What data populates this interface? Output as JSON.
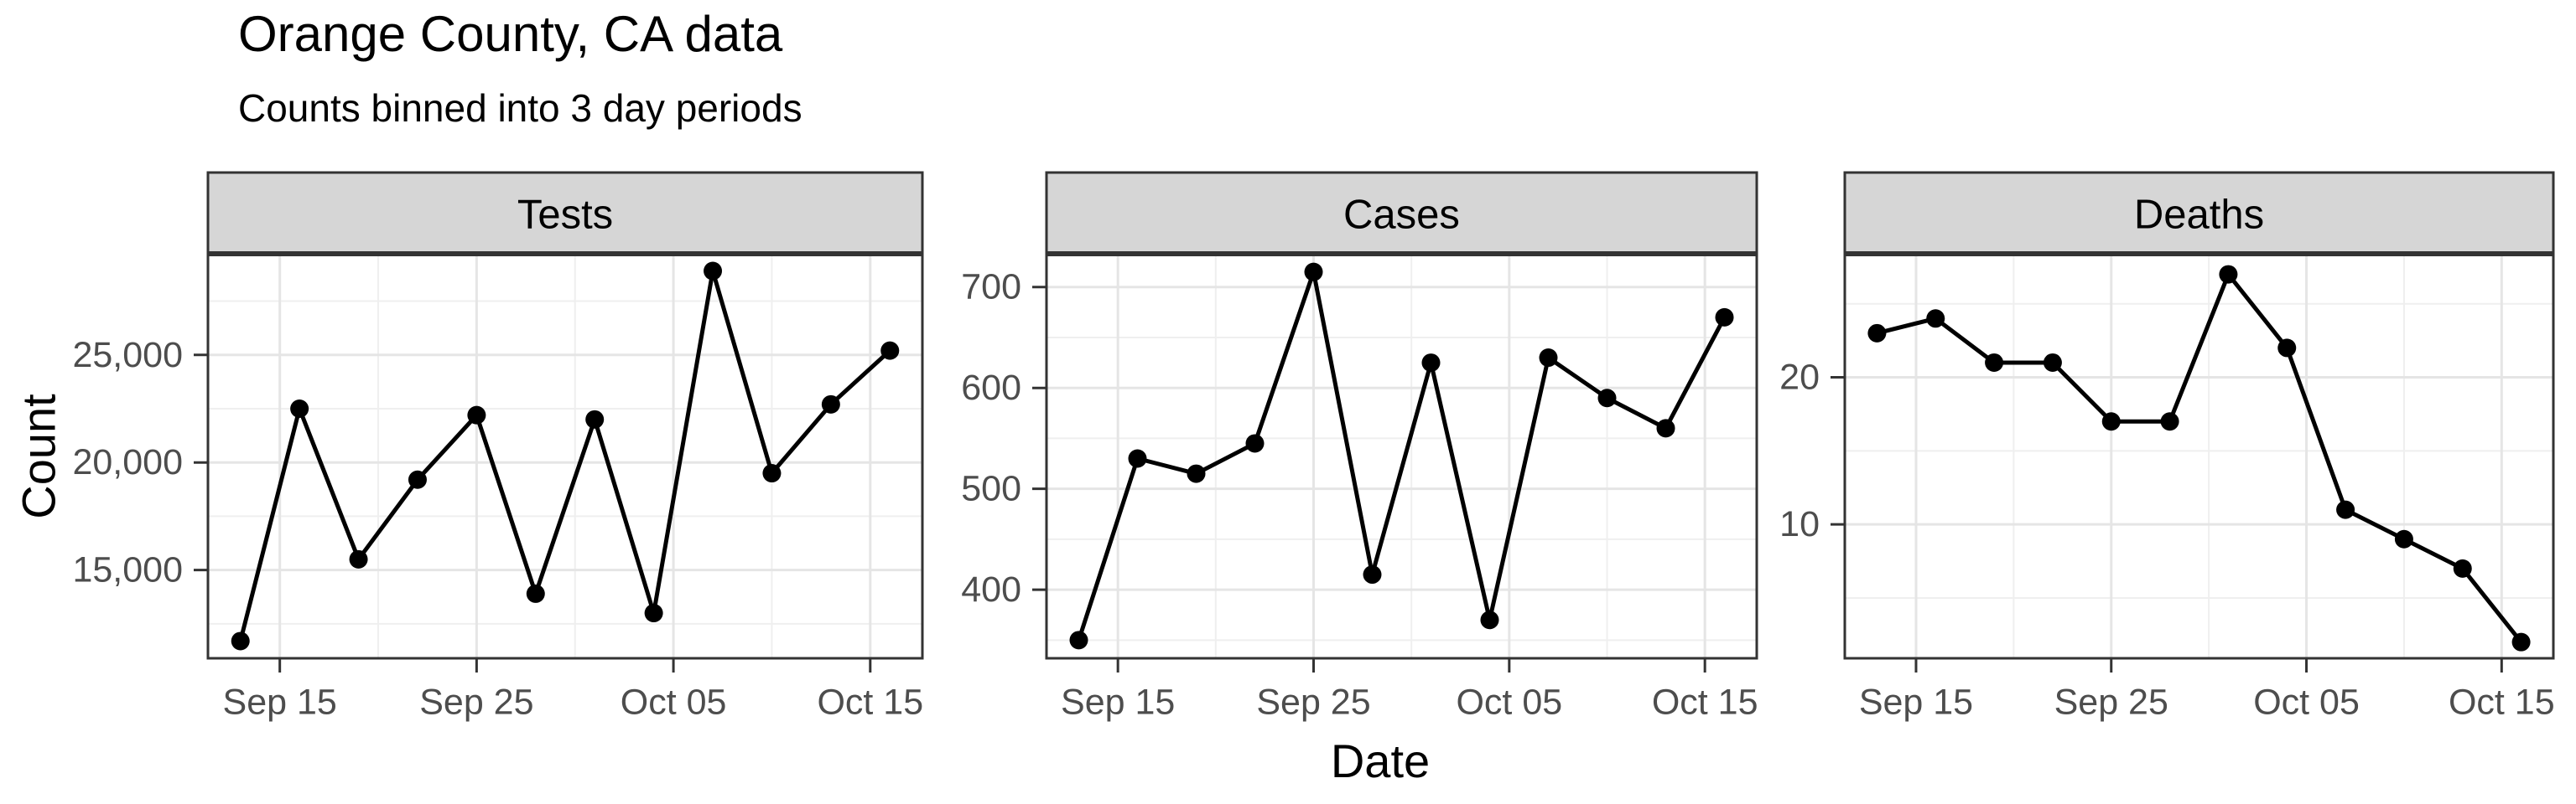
{
  "header": {
    "title": "Orange County, CA data",
    "subtitle": "Counts binned into 3 day periods"
  },
  "chart_data": {
    "type": "line",
    "title": "Orange County, CA data",
    "subtitle": "Counts binned into 3 day periods",
    "xlabel": "Date",
    "ylabel": "Count",
    "legend": "none",
    "grid": "on",
    "categories": [
      "Sep 13",
      "Sep 16",
      "Sep 19",
      "Sep 22",
      "Sep 25",
      "Sep 28",
      "Oct 01",
      "Oct 04",
      "Oct 07",
      "Oct 10",
      "Oct 13",
      "Oct 16"
    ],
    "x_days": [
      0,
      3,
      6,
      9,
      12,
      15,
      18,
      21,
      24,
      27,
      30,
      33
    ],
    "x_axis": {
      "tick_labels": [
        "Sep 15",
        "Sep 25",
        "Oct 05",
        "Oct 15"
      ],
      "tick_days": [
        2,
        12,
        22,
        32
      ],
      "minor_days": [
        7,
        17,
        27
      ],
      "xlim_days": [
        -1.65,
        34.65
      ]
    },
    "facets": [
      {
        "label": "Tests",
        "values": [
          11700,
          22500,
          15500,
          19200,
          22200,
          13900,
          22000,
          13000,
          28900,
          19500,
          22700,
          25200
        ],
        "ylim": [
          10900,
          29700
        ],
        "yticks": [
          15000,
          20000,
          25000
        ],
        "ytick_labels": [
          "15,000",
          "20,000",
          "25,000"
        ],
        "yminor": [
          12500,
          17500,
          22500,
          27500
        ]
      },
      {
        "label": "Cases",
        "values": [
          350,
          530,
          515,
          545,
          715,
          415,
          625,
          370,
          630,
          590,
          560,
          670
        ],
        "ylim": [
          332,
          733
        ],
        "yticks": [
          400,
          500,
          600,
          700
        ],
        "ytick_labels": [
          "400",
          "500",
          "600",
          "700"
        ],
        "yminor": [
          350,
          450,
          550,
          650
        ]
      },
      {
        "label": "Deaths",
        "values": [
          23,
          24,
          21,
          21,
          17,
          17,
          27,
          22,
          11,
          9,
          7,
          2
        ],
        "ylim": [
          0.9,
          28.4
        ],
        "yticks": [
          10,
          20
        ],
        "ytick_labels": [
          "10",
          "20"
        ],
        "yminor": [
          5,
          15,
          25
        ]
      }
    ],
    "style": {
      "line_color": "#000000",
      "point_color": "#000000",
      "strip_fill": "#d6d6d6",
      "border_color": "#333333",
      "grid_major": "#e5e5e5",
      "grid_minor": "#efefef",
      "tick_color": "#333333",
      "tick_label_color": "#4d4d4d",
      "text_color": "#000000",
      "background": "#ffffff"
    }
  }
}
